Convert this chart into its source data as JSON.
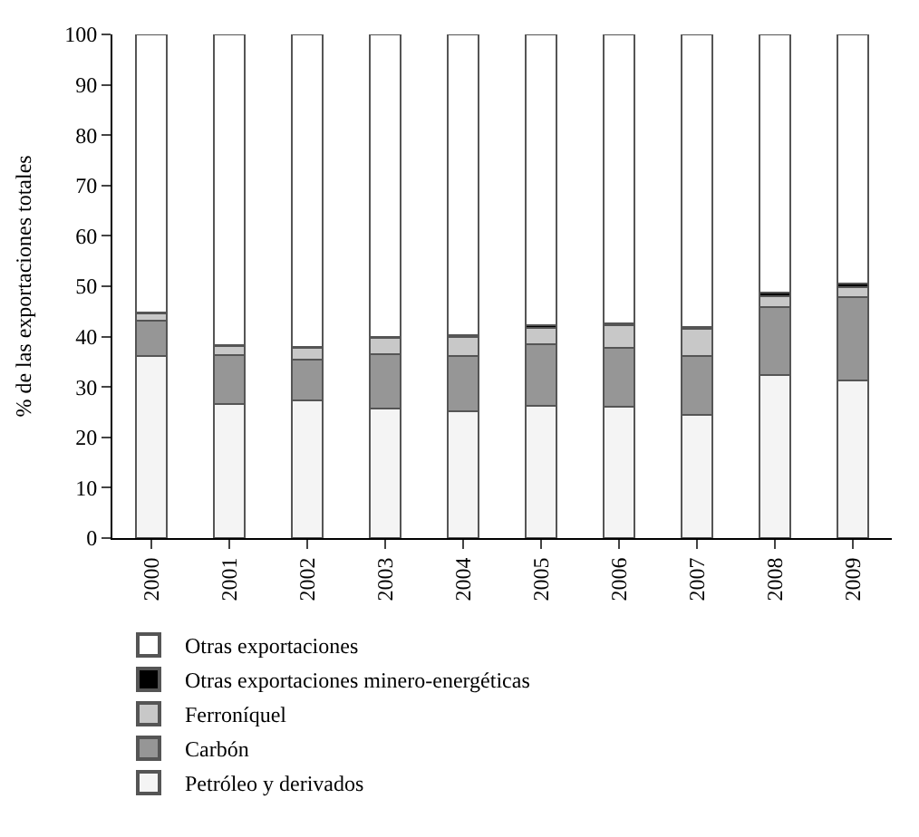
{
  "chart_data": {
    "type": "bar",
    "stacked": true,
    "ylabel": "% de las exportaciones totales",
    "categories": [
      "2000",
      "2001",
      "2002",
      "2003",
      "2004",
      "2005",
      "2006",
      "2007",
      "2008",
      "2009"
    ],
    "series": [
      {
        "name": "Petróleo y derivados",
        "color": "#f4f4f4",
        "values": [
          36.2,
          26.6,
          27.3,
          25.8,
          25.2,
          26.2,
          26.0,
          24.4,
          32.4,
          31.3
        ]
      },
      {
        "name": "Carbón",
        "color": "#969696",
        "values": [
          6.9,
          9.8,
          8.2,
          10.8,
          11.0,
          12.3,
          11.8,
          11.7,
          13.4,
          16.5
        ]
      },
      {
        "name": "Ferroníquel",
        "color": "#c8c8c8",
        "values": [
          1.5,
          1.8,
          2.3,
          3.1,
          3.8,
          3.3,
          4.5,
          5.4,
          2.3,
          2.1
        ]
      },
      {
        "name": "Otras exportaciones minero-energéticas",
        "color": "#000000",
        "values": [
          0.2,
          0.2,
          0.2,
          0.2,
          0.3,
          0.4,
          0.4,
          0.4,
          0.6,
          0.7
        ]
      },
      {
        "name": "Otras exportaciones",
        "color": "#ffffff",
        "values": [
          55.2,
          61.6,
          62.0,
          60.1,
          59.7,
          57.8,
          57.3,
          58.1,
          51.3,
          49.4
        ]
      }
    ],
    "ylim": [
      0,
      100
    ],
    "yticks": [
      0,
      10,
      20,
      30,
      40,
      50,
      60,
      70,
      80,
      90,
      100
    ],
    "grid": false,
    "legend": "bottom"
  }
}
